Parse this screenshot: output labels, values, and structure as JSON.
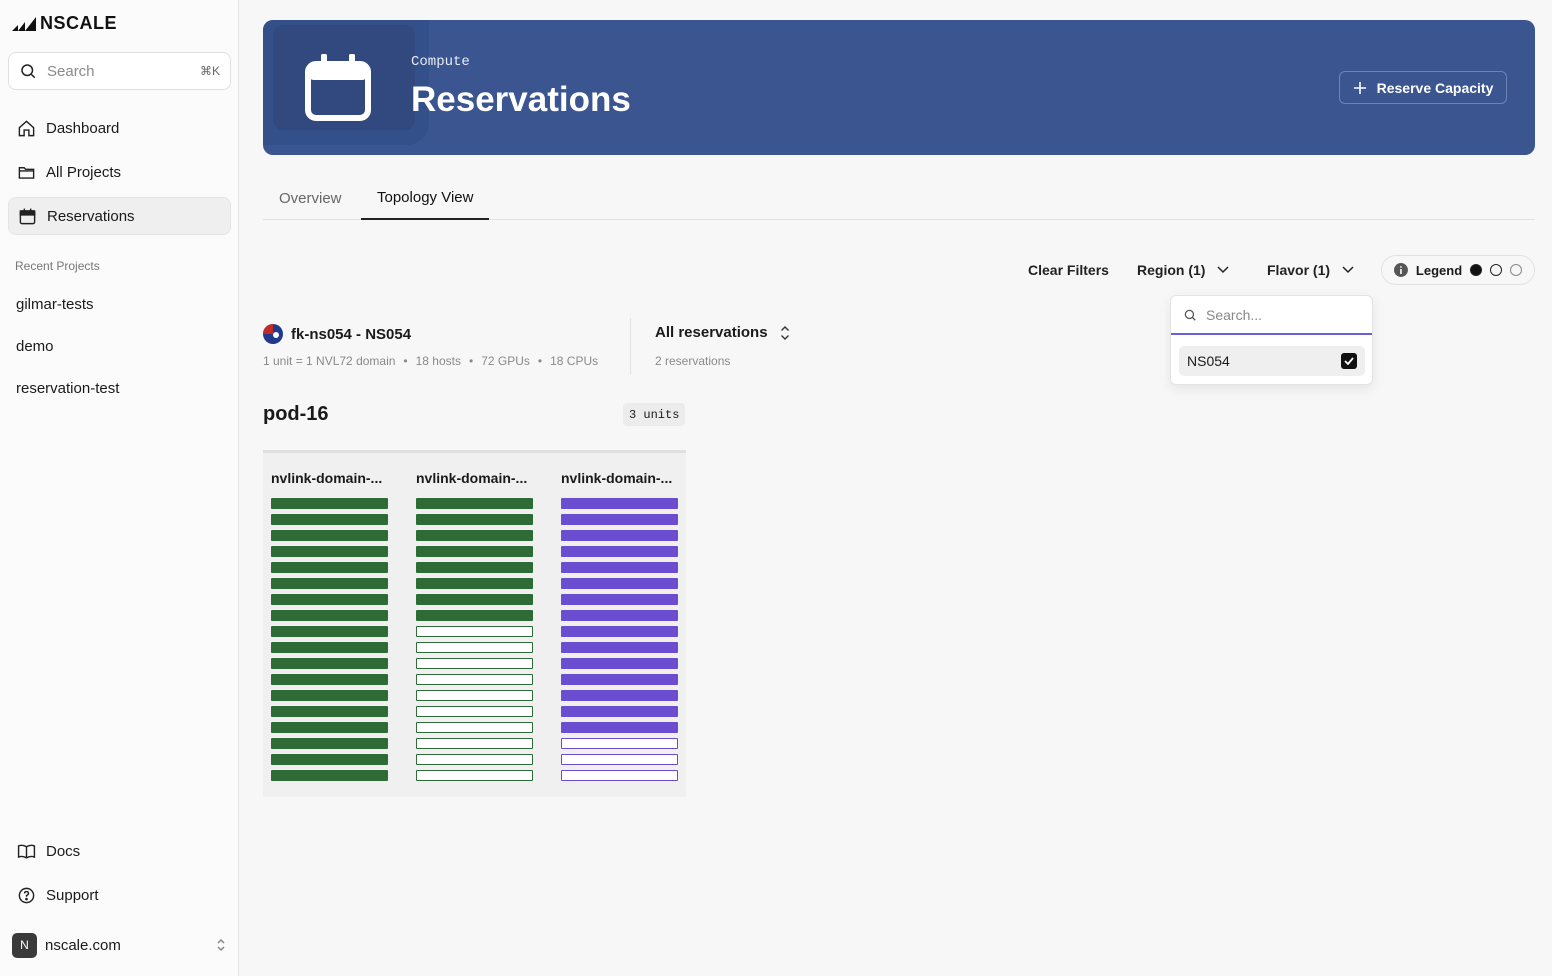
{
  "brand": {
    "name": "NSCALE"
  },
  "sidebar": {
    "search": {
      "placeholder": "Search",
      "shortcut": "⌘K"
    },
    "nav": [
      {
        "label": "Dashboard",
        "icon": "home-icon"
      },
      {
        "label": "All Projects",
        "icon": "folder-icon"
      },
      {
        "label": "Reservations",
        "icon": "calendar-icon",
        "active": true
      }
    ],
    "recent_label": "Recent Projects",
    "recent": [
      "gilmar-tests",
      "demo",
      "reservation-test"
    ],
    "footer": [
      {
        "label": "Docs",
        "icon": "book-icon"
      },
      {
        "label": "Support",
        "icon": "help-circle-icon"
      }
    ],
    "org": {
      "initial": "N",
      "name": "nscale.com"
    }
  },
  "header": {
    "eyebrow": "Compute",
    "title": "Reservations",
    "action": "Reserve Capacity",
    "color": "#3a5590"
  },
  "tabs": [
    "Overview",
    "Topology View"
  ],
  "active_tab": "Topology View",
  "filters": {
    "clear": "Clear Filters",
    "region": "Region (1)",
    "flavor": "Flavor (1)",
    "legend": "Legend"
  },
  "dropdown": {
    "placeholder": "Search...",
    "options": [
      {
        "label": "NS054",
        "checked": true
      }
    ]
  },
  "site": {
    "name": "fk-ns054 - NS054",
    "unit_def": "1 unit = 1 NVL72 domain",
    "hosts": "18 hosts",
    "gpus": "72 GPUs",
    "cpus": "18 CPUs"
  },
  "reservations": {
    "selected": "All reservations",
    "count": "2 reservations"
  },
  "pod": {
    "name": "pod-16",
    "units": "3 units",
    "columns": [
      {
        "title": "nvlink-domain-...",
        "color": "#2e6b36",
        "filled": 18,
        "total": 18
      },
      {
        "title": "nvlink-domain-...",
        "color": "#2e6b36",
        "filled": 8,
        "total": 18
      },
      {
        "title": "nvlink-domain-...",
        "color": "#6b4dd1",
        "filled": 15,
        "total": 18
      }
    ]
  }
}
